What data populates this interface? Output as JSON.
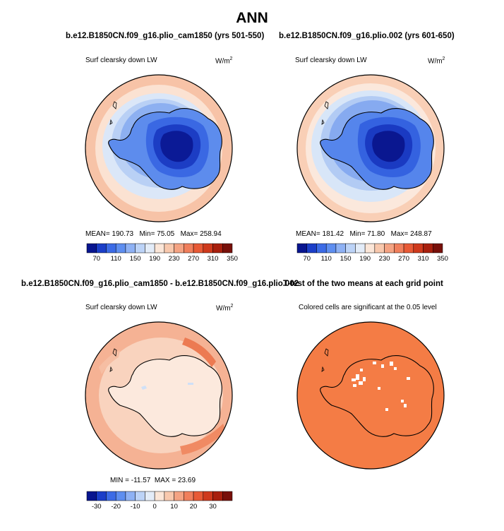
{
  "page": {
    "title": "ANN"
  },
  "panels": [
    {
      "title": "b.e12.B1850CN.f09_g16.plio_cam1850 (yrs 501-550)",
      "field": "Surf clearsky down LW",
      "units_base": "W/m",
      "units_exp": "2",
      "stats": {
        "mean_label": "MEAN=",
        "mean": "190.73",
        "min_label": "Min=",
        "min": "75.05",
        "max_label": "Max=",
        "max": "258.94"
      }
    },
    {
      "title": "b.e12.B1850CN.f09_g16.plio.002 (yrs 601-650)",
      "field": "Surf clearsky down LW",
      "units_base": "W/m",
      "units_exp": "2",
      "stats": {
        "mean_label": "MEAN=",
        "mean": "181.42",
        "min_label": "Min=",
        "min": "71.80",
        "max_label": "Max=",
        "max": "248.87"
      }
    },
    {
      "title": "b.e12.B1850CN.f09_g16.plio_cam1850 - b.e12.B1850CN.f09_g16.plio.002",
      "field": "Surf clearsky down LW",
      "units_base": "W/m",
      "units_exp": "2",
      "stats": {
        "min_label": "MIN =",
        "min": "-11.57",
        "max_label": "MAX =",
        "max": "23.69"
      }
    },
    {
      "title": "T-test of the two means at each grid point",
      "field": "Colored cells are significant at the 0.05 level"
    }
  ],
  "colorbars": {
    "abs": {
      "colors": [
        "#08158f",
        "#1b3ec8",
        "#3c6be6",
        "#5e8ef0",
        "#8eb1f4",
        "#bcd3f7",
        "#e3ecf8",
        "#fbe6d8",
        "#f8c8ad",
        "#f4a383",
        "#f07f5c",
        "#e85a36",
        "#cf3a1d",
        "#a8200e",
        "#78100a"
      ],
      "ticks": [
        "70",
        "110",
        "150",
        "190",
        "230",
        "270",
        "310",
        "350"
      ]
    },
    "diff": {
      "colors": [
        "#08158f",
        "#1b3ec8",
        "#3c6be6",
        "#5e8ef0",
        "#8eb1f4",
        "#bcd3f7",
        "#e3ecf8",
        "#fbe6d8",
        "#f8c8ad",
        "#f4a383",
        "#f07f5c",
        "#e85a36",
        "#cf3a1d",
        "#a8200e",
        "#78100a"
      ],
      "ticks": [
        "-30",
        "-20",
        "-10",
        "0",
        "10",
        "20",
        "30"
      ]
    }
  },
  "chart_data": [
    {
      "type": "heatmap",
      "projection": "south polar stereographic",
      "title": "b.e12.B1850CN.f09_g16.plio_cam1850 (yrs 501-550)",
      "variable": "Surf clearsky down LW",
      "units": "W/m2",
      "mean": 190.73,
      "min": 75.05,
      "max": 258.94,
      "contour_levels": [
        70,
        110,
        150,
        190,
        230,
        270,
        310,
        350
      ]
    },
    {
      "type": "heatmap",
      "projection": "south polar stereographic",
      "title": "b.e12.B1850CN.f09_g16.plio.002 (yrs 601-650)",
      "variable": "Surf clearsky down LW",
      "units": "W/m2",
      "mean": 181.42,
      "min": 71.8,
      "max": 248.87,
      "contour_levels": [
        70,
        110,
        150,
        190,
        230,
        270,
        310,
        350
      ]
    },
    {
      "type": "heatmap",
      "projection": "south polar stereographic",
      "title": "b.e12.B1850CN.f09_g16.plio_cam1850 - b.e12.B1850CN.f09_g16.plio.002",
      "variable": "Surf clearsky down LW",
      "units": "W/m2",
      "min": -11.57,
      "max": 23.69,
      "contour_levels": [
        -30,
        -20,
        -10,
        0,
        10,
        20,
        30
      ]
    },
    {
      "type": "heatmap",
      "projection": "south polar stereographic",
      "title": "T-test of the two means at each grid point",
      "note": "Colored cells are significant at the 0.05 level",
      "significance_level": 0.05
    }
  ]
}
